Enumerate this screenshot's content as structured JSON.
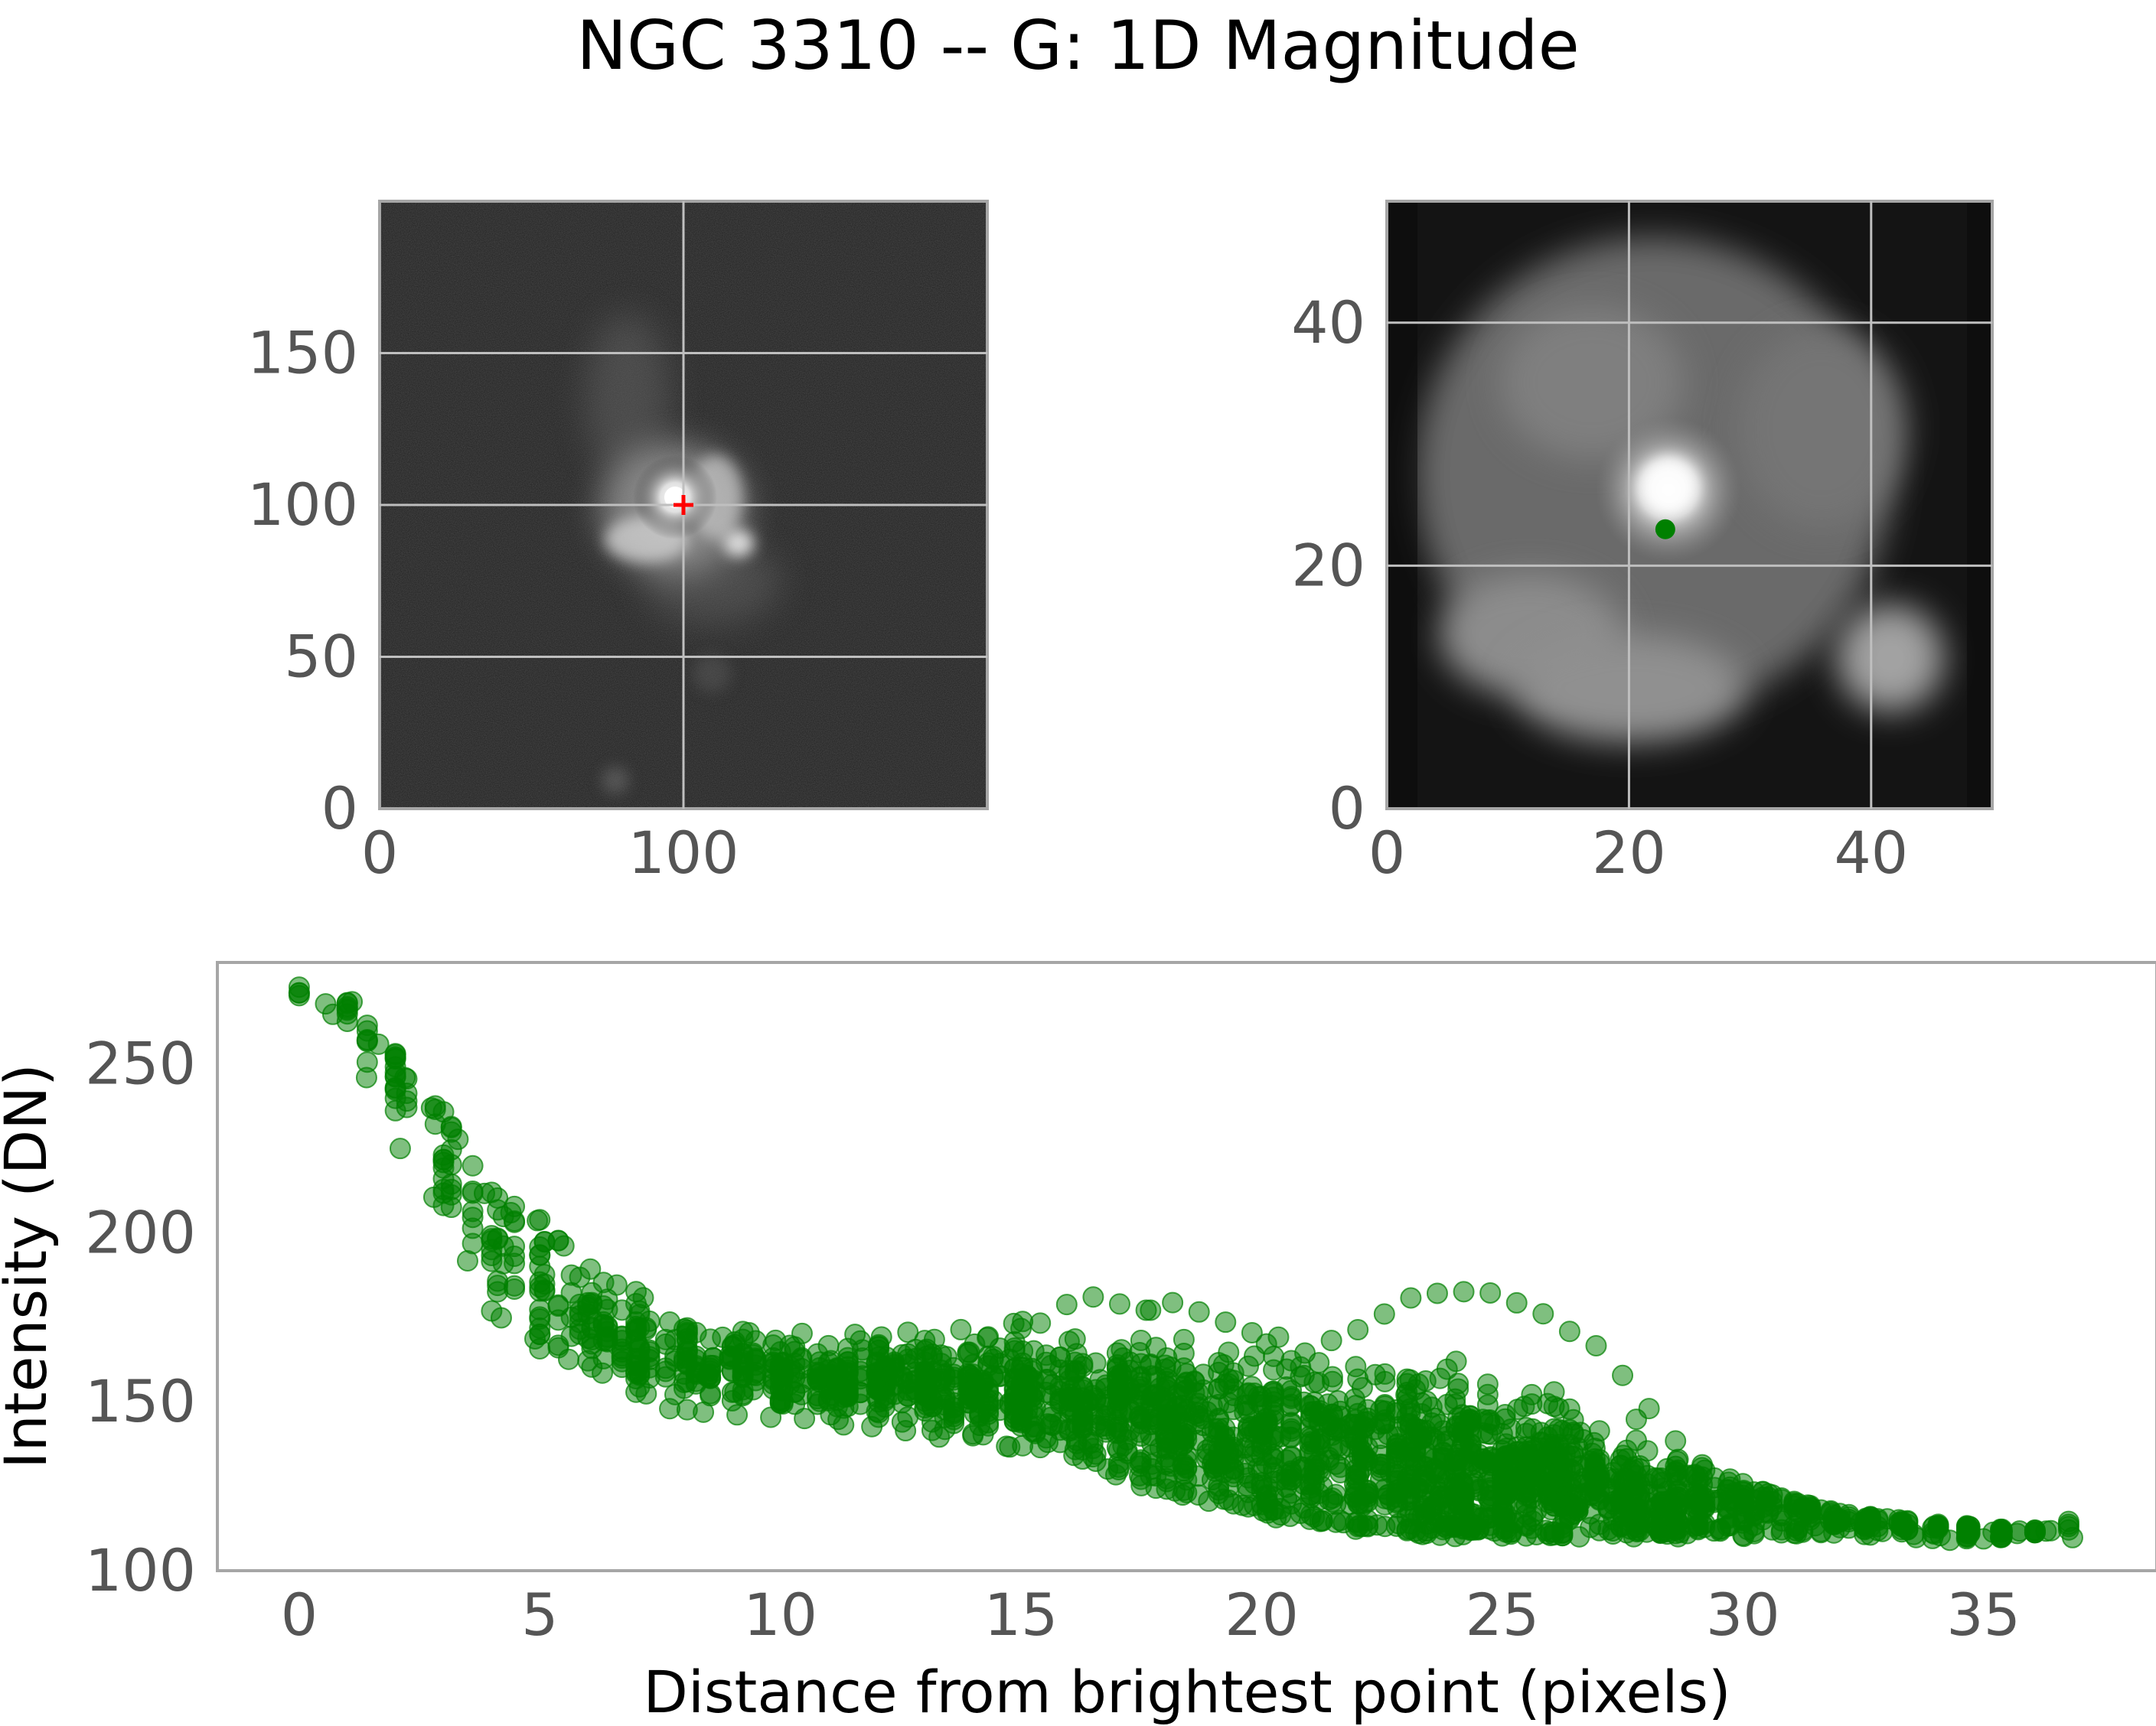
{
  "title": "NGC 3310 -- G: 1D Magnitude",
  "colors": {
    "points": "#008000",
    "crosshair": "#ff0000",
    "frame": "#a6a6a6",
    "grid": "#bfbfbf",
    "tick_text": "#555555"
  },
  "chart_data": [
    {
      "type": "heatmap",
      "subject": "full galaxy image",
      "x_ticks": [
        "0",
        "100"
      ],
      "y_ticks": [
        "0",
        "50",
        "100",
        "150"
      ],
      "xlim": [
        0,
        200
      ],
      "ylim": [
        200,
        0
      ],
      "grid": true,
      "marker": {
        "shape": "plus",
        "x": 100,
        "y": 100,
        "color": "#ff0000"
      }
    },
    {
      "type": "heatmap",
      "subject": "zoomed core",
      "x_ticks": [
        "0",
        "20",
        "40"
      ],
      "y_ticks": [
        "0",
        "20",
        "40"
      ],
      "xlim": [
        0,
        50
      ],
      "ylim": [
        50,
        0
      ],
      "grid": true,
      "marker": {
        "shape": "dot",
        "x": 23,
        "y": 23,
        "color": "#008000"
      }
    },
    {
      "type": "scatter",
      "xlabel": "Distance from brightest point (pixels)",
      "ylabel": "Intensity (DN)",
      "x_ticks": [
        "0",
        "5",
        "10",
        "15",
        "20",
        "25",
        "30",
        "35"
      ],
      "y_ticks": [
        "100",
        "150",
        "200",
        "250"
      ],
      "xlim": [
        -1.7,
        38.6
      ],
      "ylim": [
        100,
        280
      ],
      "grid": false,
      "series_color": "#008000",
      "series_alpha": 0.5,
      "profile_x": [
        0,
        1,
        2,
        3,
        4,
        5,
        6,
        7,
        8,
        10,
        12,
        14,
        16,
        18,
        20,
        22,
        24,
        26,
        28,
        30,
        32,
        34,
        35,
        36,
        37
      ],
      "profile_y": [
        271,
        264,
        247,
        224,
        198,
        185,
        175,
        167,
        162,
        158,
        156,
        154,
        150,
        145,
        138,
        132,
        129,
        127,
        122,
        119,
        116,
        114,
        113,
        112,
        112
      ],
      "profile_spread": [
        0,
        7,
        12,
        16,
        20,
        18,
        14,
        12,
        10,
        10,
        10,
        11,
        16,
        21,
        23,
        23,
        22,
        19,
        15,
        10,
        7,
        5,
        4,
        3,
        0
      ],
      "upper_x": [
        0,
        1,
        2,
        3,
        4,
        5,
        6,
        7,
        8,
        10,
        12,
        14,
        15,
        16,
        17,
        18,
        19,
        20,
        21,
        22,
        23,
        24,
        25,
        26,
        27,
        28,
        29,
        30,
        32,
        34,
        35,
        36,
        37
      ],
      "upper_y": [
        271,
        271,
        253,
        236,
        212,
        205,
        191,
        184,
        172,
        170,
        171,
        172,
        175,
        180,
        182,
        180,
        176,
        172,
        168,
        172,
        182,
        185,
        184,
        176,
        170,
        152,
        135,
        126,
        117,
        114,
        113,
        112,
        112
      ],
      "lower_x": [
        0,
        1,
        2,
        3,
        4,
        5,
        6,
        7,
        8,
        10,
        12,
        14,
        16,
        18,
        20,
        22,
        24,
        26,
        28,
        30,
        32,
        34,
        35,
        36,
        37
      ],
      "lower_y": [
        271,
        258,
        225,
        206,
        175,
        165,
        158,
        150,
        147,
        145,
        140,
        138,
        134,
        122,
        116,
        112,
        110,
        110,
        110,
        110,
        111,
        109,
        109,
        111,
        112
      ],
      "n_points": 2400
    }
  ]
}
